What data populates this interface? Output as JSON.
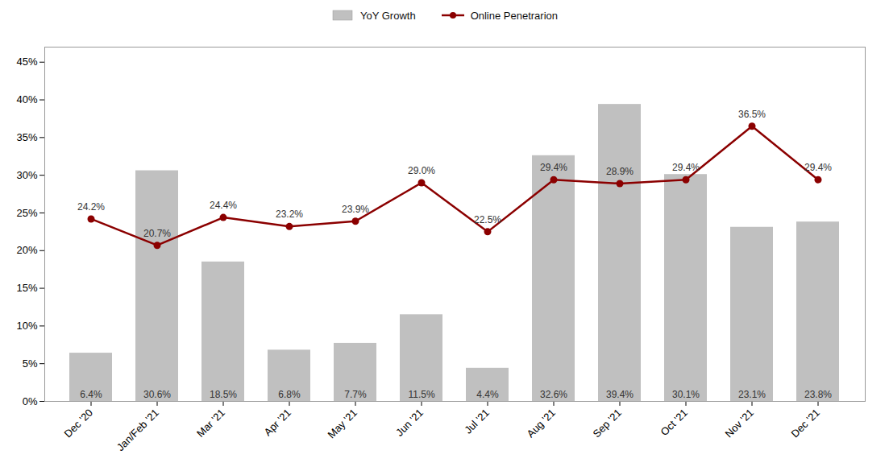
{
  "chart_data": {
    "type": "bar",
    "categories": [
      "Dec '20",
      "Jan/Feb '21",
      "Mar '21",
      "Apr '21",
      "May '21",
      "Jun '21",
      "Jul '21",
      "Aug '21",
      "Sep '21",
      "Oct '21",
      "Nov '21",
      "Dec '21"
    ],
    "series": [
      {
        "name": "YoY Growth",
        "type": "bar",
        "color": "#C0C0C0",
        "values": [
          6.4,
          30.6,
          18.5,
          6.8,
          7.7,
          11.5,
          4.4,
          32.6,
          39.4,
          30.1,
          23.1,
          23.8
        ],
        "value_labels": [
          "6.4%",
          "30.6%",
          "18.5%",
          "6.8%",
          "7.7%",
          "11.5%",
          "4.4%",
          "32.6%",
          "39.4%",
          "30.1%",
          "23.1%",
          "23.8%"
        ]
      },
      {
        "name": "Online Penetrarion",
        "type": "line",
        "color": "#8B0000",
        "marker": "circle",
        "values": [
          24.2,
          20.7,
          24.4,
          23.2,
          23.9,
          29.0,
          22.5,
          29.4,
          28.9,
          29.4,
          36.5,
          29.4
        ],
        "value_labels": [
          "24.2%",
          "20.7%",
          "24.4%",
          "23.2%",
          "23.9%",
          "29.0%",
          "22.5%",
          "29.4%",
          "28.9%",
          "29.4%",
          "36.5%",
          "29.4%"
        ]
      }
    ],
    "ylim": [
      0,
      47
    ],
    "yticks": [
      {
        "value": 0,
        "label": "0%"
      },
      {
        "value": 5,
        "label": "5%"
      },
      {
        "value": 10,
        "label": "10%"
      },
      {
        "value": 15,
        "label": "15%"
      },
      {
        "value": 20,
        "label": "20%"
      },
      {
        "value": 25,
        "label": "25%"
      },
      {
        "value": 30,
        "label": "30%"
      },
      {
        "value": 35,
        "label": "35%"
      },
      {
        "value": 40,
        "label": "40%"
      },
      {
        "value": 45,
        "label": "45%"
      }
    ],
    "grid": false,
    "legend": "top",
    "data_labels": true
  }
}
